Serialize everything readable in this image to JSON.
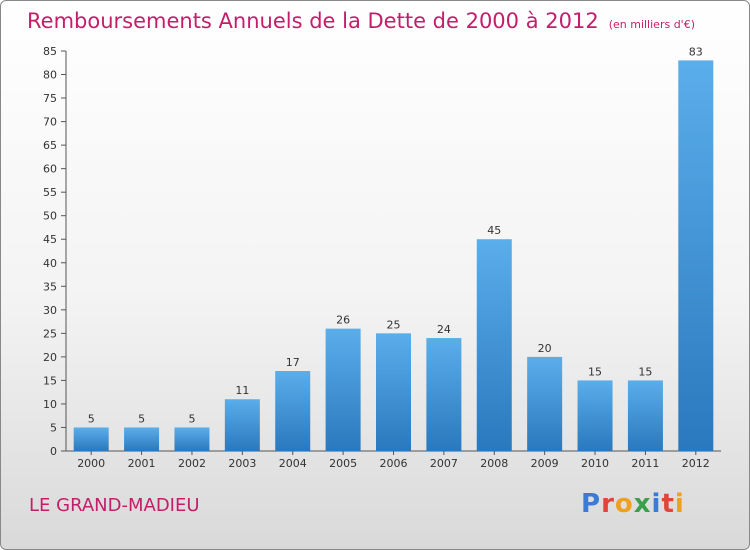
{
  "header": {
    "title": "Remboursements Annuels de la Dette de 2000 à 2012",
    "unit": "(en milliers d'€)"
  },
  "footer": {
    "town": "LE GRAND-MADIEU",
    "logo_text": "Proxiti",
    "logo_letters": [
      {
        "ch": "P",
        "color": "#3a7bd5"
      },
      {
        "ch": "r",
        "color": "#e0453a"
      },
      {
        "ch": "o",
        "color": "#f0a020"
      },
      {
        "ch": "x",
        "color": "#3aa04a"
      },
      {
        "ch": "i",
        "color": "#3a7bd5"
      },
      {
        "ch": "t",
        "color": "#e0453a"
      },
      {
        "ch": "i",
        "color": "#f0a020"
      }
    ]
  },
  "colors": {
    "title": "#c41e6b",
    "bar_top": "#5aaeea",
    "bar_bottom": "#2a78be"
  },
  "chart_data": {
    "type": "bar",
    "title": "Remboursements Annuels de la Dette de 2000 à 2012",
    "categories": [
      "2000",
      "2001",
      "2002",
      "2003",
      "2004",
      "2005",
      "2006",
      "2007",
      "2008",
      "2009",
      "2010",
      "2011",
      "2012"
    ],
    "values": [
      5,
      5,
      5,
      11,
      17,
      26,
      25,
      24,
      45,
      20,
      15,
      15,
      83
    ],
    "ylim": [
      0,
      85
    ],
    "yticks": [
      0,
      5,
      10,
      15,
      20,
      25,
      30,
      35,
      40,
      45,
      50,
      55,
      60,
      65,
      70,
      75,
      80,
      85
    ],
    "grid": false
  }
}
